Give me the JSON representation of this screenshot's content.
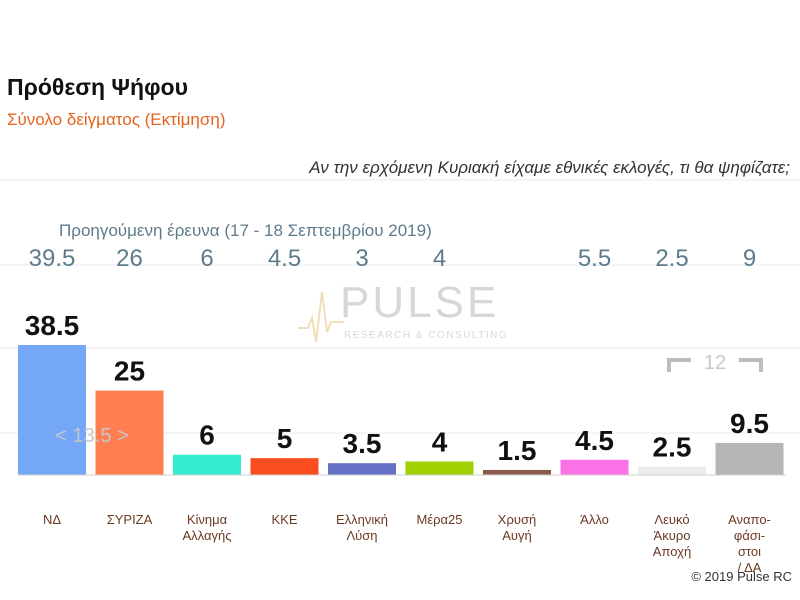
{
  "header": {
    "title": "Πρόθεση Ψήφου",
    "subtitle": "Σύνολο δείγματος    (Εκτίμηση)",
    "question": "Αν την ερχόμενη Κυριακή είχαμε εθνικές εκλογές, τι θα ψηφίζατε;",
    "previous_caption": "Προηγούμενη έρευνα  (17 - 18  Σεπτεμβρίου  2019)"
  },
  "watermark": {
    "word": "PULSE",
    "tagline": "RESEARCH & CONSULTING"
  },
  "footer": {
    "copyright": "© 2019 Pulse RC"
  },
  "chart_data": {
    "type": "bar",
    "categories": [
      [
        "ΝΔ"
      ],
      [
        "ΣΥΡΙΖΑ"
      ],
      [
        "Κίνημα",
        "Αλλαγής"
      ],
      [
        "ΚΚΕ"
      ],
      [
        "Ελληνική",
        "Λύση"
      ],
      [
        "Μέρα25"
      ],
      [
        "Χρυσή",
        "Αυγή"
      ],
      [
        "Άλλο"
      ],
      [
        "Λευκό",
        "Άκυρο",
        "Αποχή"
      ],
      [
        "Αναπο-",
        "φάσι-",
        "στοι",
        "/ ΔΑ"
      ]
    ],
    "values": [
      38.5,
      25,
      6,
      5,
      3.5,
      4,
      1.5,
      4.5,
      2.5,
      9.5
    ],
    "value_labels": [
      "38.5",
      "25",
      "6",
      "5",
      "3.5",
      "4",
      "1.5",
      "4.5",
      "2.5",
      "9.5"
    ],
    "previous_values": [
      "39.5",
      "26",
      "6",
      "4.5",
      "3",
      "4",
      "",
      "5.5",
      "2.5",
      "9"
    ],
    "colors": [
      "#74a8f6",
      "#ff7f52",
      "#33ecd0",
      "#fb4d1f",
      "#6670c5",
      "#9fd100",
      "#8b5a4a",
      "#fa72e6",
      "#ececec",
      "#b5b5b5"
    ],
    "ylim": [
      0,
      45
    ],
    "grid": true,
    "annotations": [
      {
        "text": "< 13.5 >",
        "between": [
          "ΝΔ",
          "ΣΥΡΙΖΑ"
        ]
      },
      {
        "text": "12",
        "between": [
          "Αναπο-φάσιστοι / ΔΑ",
          "Άλλο"
        ]
      }
    ]
  }
}
